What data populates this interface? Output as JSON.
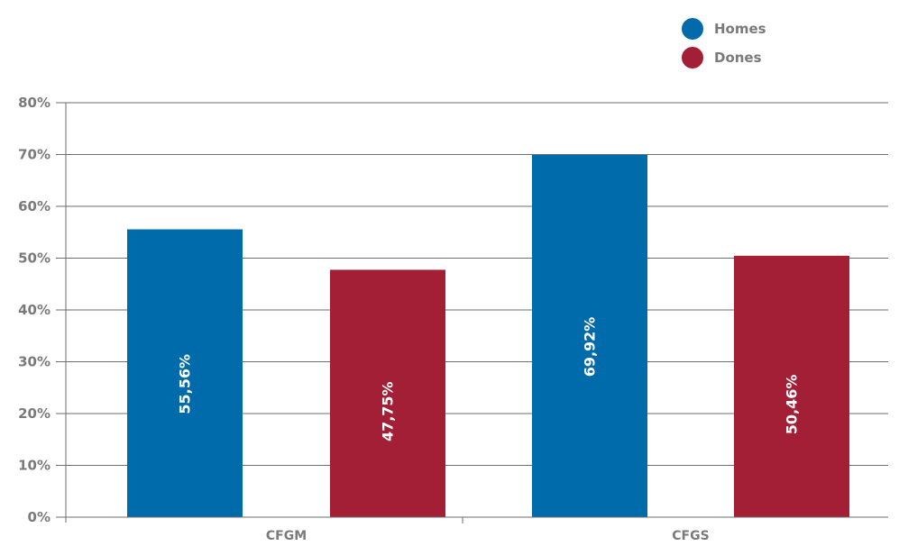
{
  "chart_data": {
    "type": "bar",
    "title": "",
    "xlabel": "",
    "ylabel": "",
    "categories": [
      "CFGM",
      "CFGS"
    ],
    "series": [
      {
        "name": "Homes",
        "color": "#006bab",
        "values": [
          55.56,
          69.92
        ],
        "labels": [
          "55,56%",
          "69,92%"
        ]
      },
      {
        "name": "Dones",
        "color": "#a31f35",
        "values": [
          47.75,
          50.46
        ],
        "labels": [
          "47,75%",
          "50,46%"
        ]
      }
    ],
    "ylim": [
      0,
      80
    ],
    "yticks": [
      0,
      10,
      20,
      30,
      40,
      50,
      60,
      70,
      80
    ],
    "ytick_labels": [
      "0%",
      "10%",
      "20%",
      "30%",
      "40%",
      "50%",
      "60%",
      "70%",
      "80%"
    ],
    "grid": true,
    "legend_position": "top-right",
    "axis_color": "#6e6e6e",
    "text_color": "#7a7a7a"
  }
}
